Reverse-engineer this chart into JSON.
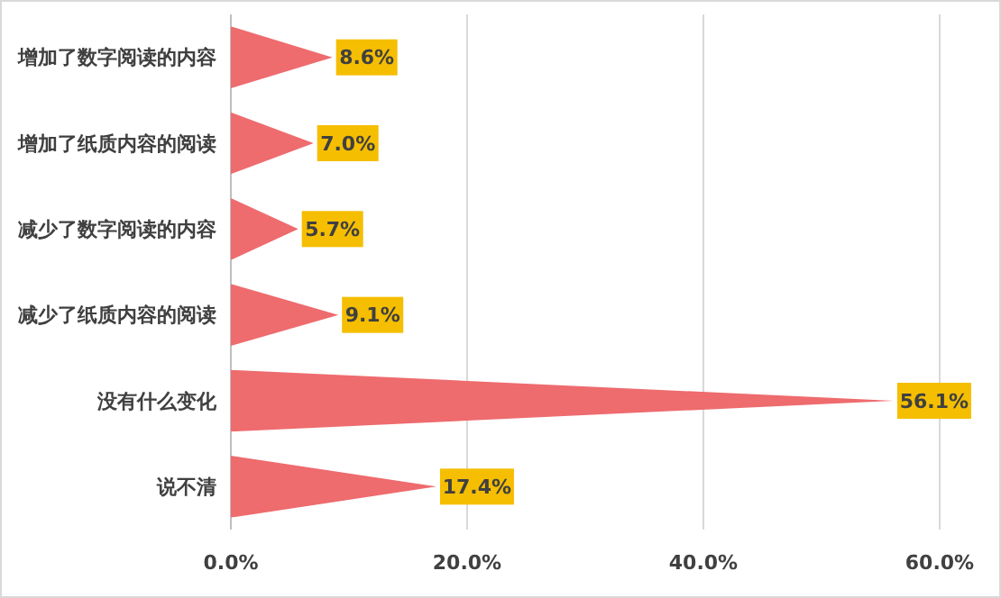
{
  "chart_data": {
    "type": "bar",
    "orientation": "horizontal",
    "categories": [
      "增加了数字阅读的内容",
      "增加了纸质内容的阅读",
      "减少了数字阅读的内容",
      "减少了纸质内容的阅读",
      "没有什么变化",
      "说不清"
    ],
    "values": [
      8.6,
      7.0,
      5.7,
      9.1,
      56.1,
      17.4
    ],
    "value_labels": [
      "8.6%",
      "7.0%",
      "5.7%",
      "9.1%",
      "56.1%",
      "17.4%"
    ],
    "color": "#ee6b6e",
    "xlim": [
      0,
      60
    ],
    "xticks": [
      {
        "value": 0,
        "label": "0.0%"
      },
      {
        "value": 20,
        "label": "20.0%"
      },
      {
        "value": 40,
        "label": "40.0%"
      },
      {
        "value": 60,
        "label": "60.0%"
      }
    ],
    "grid": "x"
  }
}
